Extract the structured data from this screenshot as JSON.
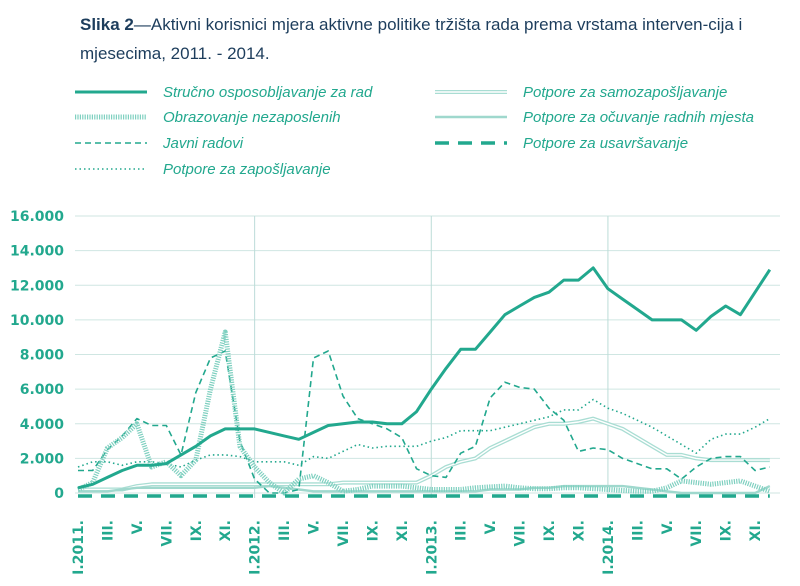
{
  "chart_data": {
    "type": "line",
    "title_prefix": "Slika 2",
    "title": "—Aktivni korisnici mjera aktivne politike tržišta rada prema vrstama interven-cija i mjesecima, 2011. - 2014.",
    "xlabel": "",
    "ylabel": "",
    "ylim": [
      0,
      16000
    ],
    "yticks": [
      "0",
      "2.000",
      "4.000",
      "6.000",
      "8.000",
      "10.000",
      "12.000",
      "14.000",
      "16.000"
    ],
    "xtick_labels": [
      "I.2011.",
      "III.",
      "V.",
      "VII.",
      "IX.",
      "XI.",
      "I.2012.",
      "III.",
      "V.",
      "VII.",
      "IX.",
      "XI.",
      "I.2013.",
      "III.",
      "V.",
      "VII.",
      "IX.",
      "XI.",
      "I.2014.",
      "III.",
      "V.",
      "VII.",
      "IX.",
      "XI."
    ],
    "x": "monthly, I.2011. - XII.2014.",
    "grid": true,
    "legend_placement": "top",
    "color": "#22a88e",
    "series": [
      {
        "name": "Stručno osposobljavanje za rad",
        "style": "solid-thick",
        "values": [
          300,
          500,
          900,
          1300,
          1600,
          1600,
          1700,
          2200,
          2700,
          3300,
          3700,
          3700,
          3700,
          3500,
          3300,
          3100,
          3500,
          3900,
          4000,
          4100,
          4100,
          4000,
          4000,
          4700,
          6000,
          7200,
          8300,
          8300,
          9300,
          10300,
          10800,
          11300,
          11600,
          12300,
          12300,
          13000,
          11800,
          11200,
          10600,
          10000,
          10000,
          10000,
          9400,
          10200,
          10800,
          10300,
          11600,
          12900
        ]
      },
      {
        "name": "Obrazovanje nezaposlenih",
        "style": "thick-dotted",
        "values": [
          200,
          600,
          2600,
          3200,
          4000,
          1500,
          1800,
          1000,
          1900,
          6000,
          9300,
          2700,
          1500,
          600,
          0,
          800,
          1000,
          600,
          100,
          200,
          400,
          400,
          400,
          300,
          200,
          200,
          200,
          300,
          350,
          400,
          300,
          250,
          250,
          300,
          300,
          250,
          200,
          150,
          100,
          100,
          300,
          700,
          600,
          500,
          600,
          700,
          400,
          100
        ]
      },
      {
        "name": "Javni radovi",
        "style": "dashed",
        "values": [
          1300,
          1300,
          2500,
          3300,
          4300,
          3900,
          3900,
          2200,
          5800,
          7800,
          8200,
          3000,
          800,
          0,
          0,
          200,
          7800,
          8200,
          5600,
          4300,
          4000,
          3700,
          3200,
          1400,
          1000,
          900,
          2300,
          2700,
          5500,
          6400,
          6100,
          6000,
          4900,
          4200,
          2400,
          2600,
          2500,
          2000,
          1700,
          1400,
          1400,
          800,
          1500,
          2000,
          2100,
          2100,
          1300,
          1500
        ]
      },
      {
        "name": "Potpore za zapošljavanje",
        "style": "dotted",
        "values": [
          1500,
          1800,
          1800,
          1600,
          1800,
          1800,
          1700,
          1500,
          1900,
          2200,
          2200,
          2100,
          1800,
          1800,
          1800,
          1600,
          2100,
          2000,
          2400,
          2800,
          2600,
          2700,
          2700,
          2700,
          3000,
          3200,
          3600,
          3600,
          3600,
          3800,
          4000,
          4200,
          4400,
          4800,
          4800,
          5400,
          4900,
          4600,
          4200,
          3800,
          3300,
          2800,
          2300,
          3100,
          3400,
          3400,
          3800,
          4300
        ]
      },
      {
        "name": "Potpore za samozapošljavanje",
        "style": "double",
        "values": [
          200,
          200,
          200,
          200,
          400,
          500,
          500,
          500,
          500,
          500,
          500,
          500,
          500,
          500,
          500,
          500,
          500,
          500,
          600,
          600,
          600,
          600,
          600,
          600,
          1000,
          1500,
          1800,
          2000,
          2600,
          3000,
          3400,
          3800,
          4000,
          4000,
          4100,
          4300,
          4000,
          3700,
          3200,
          2700,
          2200,
          2200,
          2000,
          1900,
          1900,
          1900,
          1900,
          1900
        ]
      },
      {
        "name": "Potpore za očuvanje radnih mjesta",
        "style": "light-solid",
        "values": [
          100,
          100,
          100,
          200,
          300,
          300,
          300,
          300,
          300,
          300,
          300,
          300,
          300,
          400,
          300,
          200,
          100,
          100,
          100,
          100,
          100,
          100,
          100,
          100,
          100,
          100,
          100,
          100,
          200,
          200,
          200,
          300,
          300,
          400,
          400,
          400,
          400,
          400,
          300,
          200,
          100,
          0,
          0,
          0,
          0,
          0,
          0,
          400
        ]
      },
      {
        "name": "Potpore za usavršavanje",
        "style": "long-dash",
        "values": [
          0,
          0,
          0,
          0,
          0,
          0,
          0,
          0,
          0,
          0,
          0,
          0,
          0,
          0,
          0,
          0,
          0,
          0,
          0,
          0,
          0,
          0,
          0,
          0,
          0,
          0,
          0,
          0,
          0,
          0,
          0,
          0,
          0,
          0,
          0,
          0,
          0,
          0,
          0,
          0,
          0,
          0,
          0,
          0,
          0,
          0,
          0,
          0
        ]
      }
    ]
  }
}
